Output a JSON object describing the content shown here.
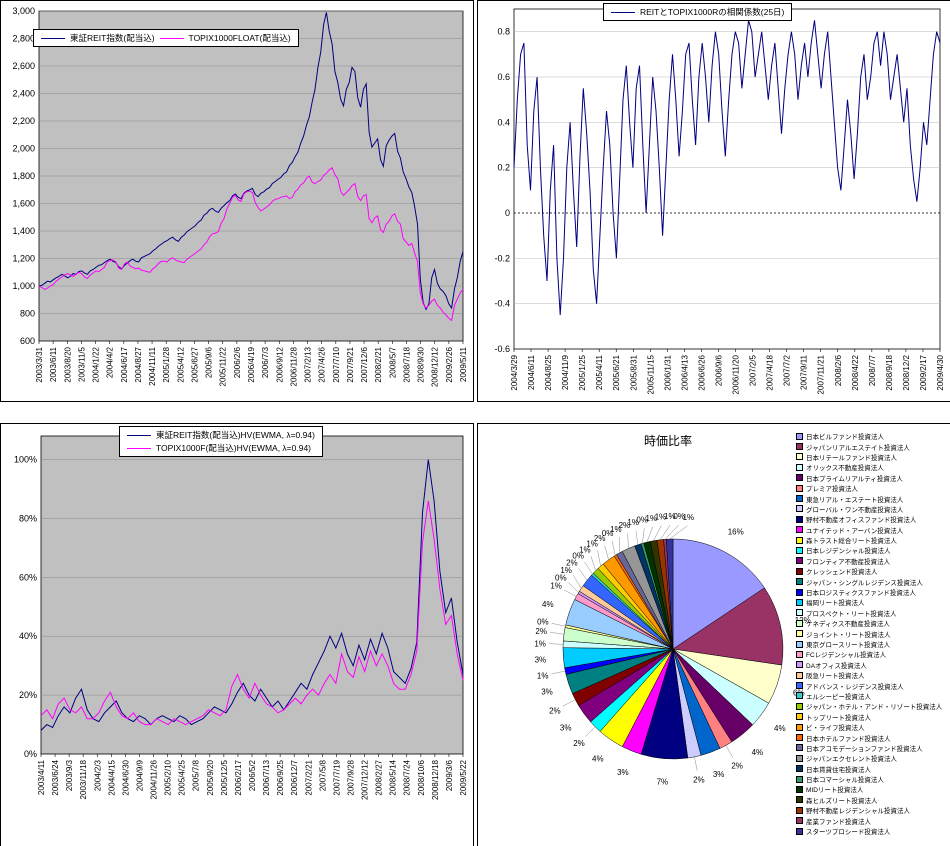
{
  "chart_data": [
    {
      "type": "line",
      "title": "",
      "legend_position": "top-left-inside",
      "ylim": [
        600,
        3000
      ],
      "yticks": [
        600,
        800,
        1000,
        1200,
        1400,
        1600,
        1800,
        2000,
        2200,
        2400,
        2600,
        2800,
        3000
      ],
      "ytick_labels": [
        "600",
        "800",
        "1,000",
        "1,200",
        "1,400",
        "1,600",
        "1,800",
        "2,000",
        "2,200",
        "2,400",
        "2,600",
        "2,800",
        "3,000"
      ],
      "x_tick_labels": [
        "2003/3/31",
        "2003/6/11",
        "2003/8/20",
        "2003/11/5",
        "2004/1/22",
        "2004/4/2",
        "2004/6/17",
        "2004/8/27",
        "2004/11/11",
        "2005/1/28",
        "2005/4/12",
        "2005/6/27",
        "2005/9/6",
        "2005/11/22",
        "2006/2/6",
        "2006/4/19",
        "2006/7/3",
        "2006/9/12",
        "2006/11/28",
        "2007/2/13",
        "2007/4/26",
        "2007/7/10",
        "2007/9/21",
        "2007/12/6",
        "2008/2/21",
        "2008/5/7",
        "2008/7/18",
        "2008/9/30",
        "2008/12/12",
        "2009/2/26",
        "2009/5/11"
      ],
      "plot_bg": "#C0C0C0",
      "grid": true,
      "series": [
        {
          "name": "東証REIT指数(配当込)",
          "color": "#000080",
          "values": [
            1000,
            1005,
            1020,
            1035,
            1030,
            1045,
            1060,
            1070,
            1085,
            1075,
            1060,
            1070,
            1090,
            1085,
            1105,
            1110,
            1095,
            1085,
            1110,
            1120,
            1135,
            1150,
            1155,
            1170,
            1185,
            1195,
            1180,
            1170,
            1140,
            1125,
            1150,
            1165,
            1185,
            1195,
            1180,
            1175,
            1205,
            1215,
            1225,
            1235,
            1255,
            1270,
            1290,
            1305,
            1320,
            1330,
            1345,
            1355,
            1335,
            1325,
            1355,
            1370,
            1395,
            1410,
            1425,
            1440,
            1465,
            1480,
            1515,
            1530,
            1555,
            1565,
            1545,
            1535,
            1565,
            1585,
            1605,
            1620,
            1655,
            1670,
            1645,
            1635,
            1675,
            1690,
            1700,
            1710,
            1665,
            1650,
            1675,
            1685,
            1705,
            1715,
            1745,
            1760,
            1775,
            1790,
            1815,
            1830,
            1875,
            1900,
            1940,
            1975,
            2040,
            2090,
            2170,
            2230,
            2340,
            2430,
            2590,
            2700,
            2900,
            2990,
            2850,
            2760,
            2560,
            2480,
            2360,
            2310,
            2430,
            2480,
            2590,
            2560,
            2370,
            2300,
            2430,
            2470,
            2120,
            2010,
            2040,
            2070,
            1920,
            1870,
            2020,
            2060,
            2090,
            2110,
            1980,
            1930,
            1830,
            1780,
            1720,
            1680,
            1580,
            1450,
            1050,
            880,
            830,
            870,
            1060,
            1120,
            1020,
            980,
            960,
            930,
            870,
            840,
            980,
            1060,
            1180,
            1250
          ]
        },
        {
          "name": "TOPIX1000FLOAT(配当込)",
          "color": "#FF00FF",
          "values": [
            1000,
            990,
            975,
            985,
            1000,
            1010,
            1035,
            1050,
            1065,
            1080,
            1090,
            1080,
            1070,
            1085,
            1100,
            1090,
            1065,
            1055,
            1080,
            1095,
            1110,
            1105,
            1120,
            1135,
            1175,
            1185,
            1190,
            1175,
            1130,
            1120,
            1160,
            1175,
            1145,
            1135,
            1125,
            1130,
            1115,
            1110,
            1105,
            1100,
            1125,
            1140,
            1165,
            1180,
            1180,
            1175,
            1195,
            1205,
            1190,
            1180,
            1175,
            1170,
            1195,
            1210,
            1225,
            1240,
            1255,
            1270,
            1300,
            1320,
            1360,
            1380,
            1385,
            1395,
            1455,
            1490,
            1560,
            1600,
            1645,
            1660,
            1625,
            1615,
            1670,
            1685,
            1690,
            1680,
            1605,
            1570,
            1545,
            1560,
            1575,
            1590,
            1615,
            1630,
            1635,
            1645,
            1650,
            1655,
            1635,
            1645,
            1685,
            1705,
            1735,
            1750,
            1785,
            1800,
            1755,
            1745,
            1760,
            1770,
            1805,
            1820,
            1845,
            1860,
            1810,
            1780,
            1690,
            1660,
            1680,
            1700,
            1730,
            1745,
            1650,
            1620,
            1655,
            1665,
            1490,
            1460,
            1495,
            1510,
            1410,
            1390,
            1450,
            1470,
            1510,
            1525,
            1470,
            1450,
            1345,
            1320,
            1295,
            1310,
            1240,
            1180,
            950,
            870,
            840,
            860,
            890,
            905,
            860,
            840,
            810,
            790,
            765,
            750,
            860,
            905,
            950,
            975
          ]
        }
      ]
    },
    {
      "type": "line",
      "title": "REITとTOPIX1000Rの相関係数(25日)",
      "legend_position": "top-center",
      "ylim": [
        -0.6,
        0.9
      ],
      "yticks": [
        -0.6,
        -0.4,
        -0.2,
        0,
        0.2,
        0.4,
        0.6,
        0.8
      ],
      "ytick_labels": [
        "-0.6",
        "-0.4",
        "-0.2",
        "0",
        "0.2",
        "0.4",
        "0.6",
        "0.8"
      ],
      "x_tick_labels": [
        "2004/3/29",
        "2004/6/11",
        "2004/8/25",
        "2004/11/9",
        "2005/1/25",
        "2005/4/11",
        "2005/6/21",
        "2005/8/31",
        "2005/11/15",
        "2006/1/31",
        "2006/4/13",
        "2006/6/26",
        "2006/9/6",
        "2006/11/20",
        "2007/2/5",
        "2007/4/18",
        "2007/7/2",
        "2007/9/11",
        "2007/11/21",
        "2008/2/6",
        "2008/4/22",
        "2008/7/7",
        "2008/9/18",
        "2008/12/2",
        "2009/2/17",
        "2009/4/30"
      ],
      "plot_bg": "#FFFFFF",
      "grid": true,
      "series": [
        {
          "name": "REITとTOPIX1000Rの相関係数(25日)",
          "color": "#000080",
          "values": [
            0.2,
            0.5,
            0.7,
            0.75,
            0.3,
            0.1,
            0.45,
            0.6,
            0.2,
            -0.1,
            -0.3,
            0.1,
            0.3,
            -0.2,
            -0.45,
            -0.2,
            0.2,
            0.4,
            0.1,
            -0.15,
            0.25,
            0.55,
            0.35,
            0.1,
            -0.25,
            -0.4,
            -0.1,
            0.2,
            0.45,
            0.3,
            0.0,
            -0.2,
            0.15,
            0.5,
            0.65,
            0.4,
            0.2,
            0.55,
            0.65,
            0.3,
            0.0,
            0.3,
            0.6,
            0.45,
            0.2,
            -0.1,
            0.2,
            0.5,
            0.7,
            0.5,
            0.25,
            0.45,
            0.7,
            0.75,
            0.5,
            0.3,
            0.6,
            0.75,
            0.6,
            0.4,
            0.65,
            0.8,
            0.7,
            0.45,
            0.25,
            0.5,
            0.7,
            0.8,
            0.75,
            0.55,
            0.7,
            0.85,
            0.8,
            0.6,
            0.7,
            0.8,
            0.65,
            0.5,
            0.65,
            0.75,
            0.55,
            0.35,
            0.55,
            0.7,
            0.8,
            0.7,
            0.5,
            0.65,
            0.75,
            0.6,
            0.75,
            0.85,
            0.7,
            0.55,
            0.7,
            0.8,
            0.6,
            0.4,
            0.2,
            0.1,
            0.3,
            0.5,
            0.35,
            0.15,
            0.35,
            0.6,
            0.7,
            0.5,
            0.6,
            0.75,
            0.8,
            0.65,
            0.8,
            0.7,
            0.5,
            0.6,
            0.7,
            0.55,
            0.4,
            0.55,
            0.3,
            0.15,
            0.05,
            0.2,
            0.4,
            0.3,
            0.5,
            0.7,
            0.8,
            0.75
          ]
        }
      ]
    },
    {
      "type": "line",
      "title": "",
      "legend_position": "top-center",
      "ylim": [
        0,
        108
      ],
      "yticks": [
        0,
        20,
        40,
        60,
        80,
        100
      ],
      "ytick_labels": [
        "0%",
        "20%",
        "40%",
        "60%",
        "80%",
        "100%"
      ],
      "x_tick_labels": [
        "2003/4/11",
        "2003/6/24",
        "2003/9/3",
        "2003/11/18",
        "2004/2/3",
        "2004/4/15",
        "2004/6/30",
        "2004/9/9",
        "2004/11/26",
        "2005/2/10",
        "2005/4/25",
        "2005/7/8",
        "2005/9/20",
        "2005/12/5",
        "2006/2/17",
        "2006/5/2",
        "2006/7/13",
        "2006/9/25",
        "2006/12/7",
        "2007/2/21",
        "2007/5/8",
        "2007/7/19",
        "2007/9/28",
        "2007/12/12",
        "2008/2/27",
        "2008/5/14",
        "2008/7/24",
        "2008/10/6",
        "2008/12/18",
        "2009/3/6",
        "2009/5/22"
      ],
      "plot_bg": "#C0C0C0",
      "grid": true,
      "series": [
        {
          "name": "東証REIT指数(配当込)HV(EWMA, λ=0.94)",
          "color": "#000080",
          "values": [
            8,
            10,
            9,
            13,
            16,
            14,
            19,
            22,
            15,
            12,
            11,
            14,
            16,
            18,
            14,
            12,
            11,
            13,
            12,
            10,
            12,
            13,
            12,
            11,
            13,
            12,
            10,
            11,
            12,
            14,
            16,
            15,
            14,
            17,
            21,
            24,
            20,
            18,
            22,
            19,
            16,
            18,
            15,
            18,
            21,
            24,
            22,
            27,
            31,
            35,
            40,
            36,
            41,
            34,
            30,
            37,
            32,
            39,
            34,
            41,
            36,
            28,
            26,
            24,
            29,
            38,
            82,
            100,
            86,
            62,
            48,
            53,
            38,
            27
          ]
        },
        {
          "name": "TOPIX1000F(配当込)HV(EWMA, λ=0.94)",
          "color": "#FF00FF",
          "values": [
            13,
            15,
            12,
            17,
            19,
            15,
            14,
            16,
            12,
            12,
            14,
            18,
            21,
            16,
            13,
            12,
            14,
            11,
            10,
            10,
            12,
            11,
            10,
            12,
            11,
            10,
            11,
            12,
            13,
            15,
            14,
            13,
            15,
            23,
            27,
            22,
            19,
            24,
            20,
            17,
            16,
            14,
            15,
            17,
            19,
            17,
            20,
            22,
            20,
            24,
            27,
            24,
            34,
            28,
            26,
            33,
            28,
            35,
            30,
            34,
            30,
            24,
            22,
            22,
            27,
            35,
            72,
            86,
            73,
            56,
            44,
            47,
            34,
            25
          ]
        }
      ]
    },
    {
      "type": "pie",
      "title": "時価比率",
      "values": [
        16,
        12,
        6,
        4,
        4,
        2,
        3,
        2,
        7,
        3,
        4,
        2,
        3,
        2,
        3,
        1,
        3,
        1,
        2,
        0.4,
        4,
        1,
        0.4,
        1,
        2,
        0.4,
        1,
        1,
        2,
        0.4,
        1,
        2,
        1,
        0.4,
        1,
        1,
        1,
        0.4,
        1
      ],
      "labels": [
        "日本ビルファンド投資法人",
        "ジャパンリアルエステイト投資法人",
        "日本リテールファンド投資法人",
        "オリックス不動産投資法人",
        "日本プライムリアルティ投資法人",
        "プレミア投資法人",
        "東急リアル・エステート投資法人",
        "グローバル・ワン不動産投資法人",
        "野村不動産オフィスファンド投資法人",
        "ユナイテッド・アーバン投資法人",
        "森トラスト総合リート投資法人",
        "日本レジデンシャル投資法人",
        "フロンティア不動産投資法人",
        "クレッシェンド投資法人",
        "ジャパン・シングルレジデンス投資法人",
        "日本ロジスティクスファンド投資法人",
        "福岡リート投資法人",
        "プロスペクト・リート投資法人",
        "ケネディクス不動産投資法人",
        "ジョイント・リート投資法人",
        "東京グロースリート投資法人",
        "FCレジデンシャル投資法人",
        "DAオフィス投資法人",
        "阪急リート投資法人",
        "アドバンス・レジデンス投資法人",
        "エルシーピー投資法人",
        "ジャパン・ホテル・アンド・リゾート投資法人",
        "トップリート投資法人",
        "ビ・ライフ投資法人",
        "日本ホテルファンド投資法人",
        "日本アコモデーションファンド投資法人",
        "ジャパンエクセレント投資法人",
        "日本賃貸住宅投資法人",
        "日本コマーシャル投資法人",
        "MIDリート投資法人",
        "森ヒルズリート投資法人",
        "野村不動産レジデンシャル投資法人",
        "産業ファンド投資法人",
        "スターツプロシード投資法人"
      ],
      "colors": [
        "#9999FF",
        "#993366",
        "#FFFFCC",
        "#CCFFFF",
        "#660066",
        "#FF8080",
        "#0066CC",
        "#CCCCFF",
        "#000080",
        "#FF00FF",
        "#FFFF00",
        "#00FFFF",
        "#800080",
        "#800000",
        "#008080",
        "#0000FF",
        "#00CCFF",
        "#CCFFFF",
        "#CCFFCC",
        "#FFFF99",
        "#99CCFF",
        "#FF99CC",
        "#CC99FF",
        "#FFCC99",
        "#3366FF",
        "#33CCCC",
        "#99CC00",
        "#FFCC00",
        "#FF9900",
        "#FF6600",
        "#666699",
        "#969696",
        "#003366",
        "#339966",
        "#003300",
        "#333300",
        "#993300",
        "#993366",
        "#333399"
      ],
      "label_format": "percent"
    }
  ]
}
